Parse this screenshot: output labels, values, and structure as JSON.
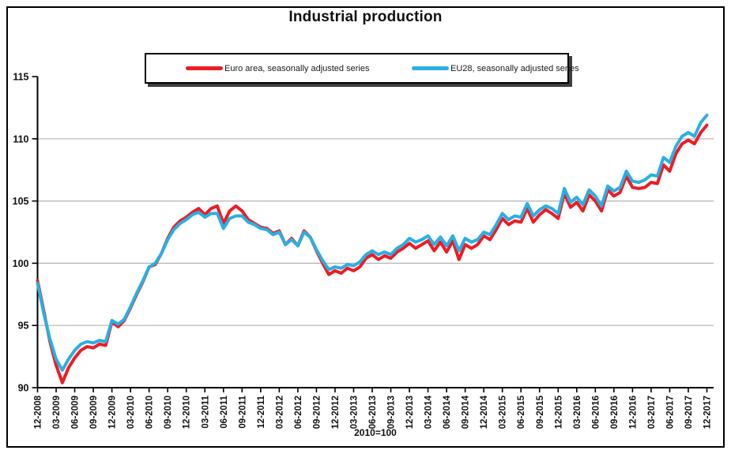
{
  "chart_data": {
    "type": "line",
    "title": "Industrial production",
    "x_note": "2010=100",
    "x_start": "12-2008",
    "x_end": "12-2017",
    "x_frequency": "monthly",
    "x_ticks_every_n_points": 3,
    "x_tick_labels": [
      "12-2008",
      "03-2009",
      "06-2009",
      "09-2009",
      "12-2009",
      "03-2010",
      "06-2010",
      "09-2010",
      "12-2010",
      "03-2011",
      "06-2011",
      "09-2011",
      "12-2011",
      "03-2012",
      "06-2012",
      "09-2012",
      "12-2012",
      "03-2013",
      "06-2013",
      "09-2013",
      "12-2013",
      "03-2014",
      "06-2014",
      "09-2014",
      "12-2014",
      "03-2015",
      "06-2015",
      "09-2015",
      "12-2015",
      "03-2016",
      "06-2016",
      "09-2016",
      "12-2016",
      "03-2017",
      "06-2017",
      "09-2017",
      "12-2017"
    ],
    "y_tick_labels": [
      "90",
      "95",
      "100",
      "105",
      "110",
      "115"
    ],
    "ylim": [
      90,
      115
    ],
    "y_gridlines": [
      95,
      100,
      105,
      110
    ],
    "grid_on": true,
    "legend_position": "top-center",
    "colors": {
      "grid": "#b3b3b3",
      "axis": "#000000"
    },
    "series": [
      {
        "name": "Euro area, seasonally adjusted series",
        "color": "#ed1c24",
        "values": [
          98.6,
          96.2,
          93.7,
          91.8,
          90.4,
          91.6,
          92.4,
          93.0,
          93.3,
          93.2,
          93.5,
          93.4,
          95.3,
          94.9,
          95.4,
          96.4,
          97.5,
          98.5,
          99.7,
          99.9,
          100.8,
          102.0,
          102.9,
          103.4,
          103.7,
          104.1,
          104.4,
          103.9,
          104.4,
          104.6,
          103.2,
          104.2,
          104.6,
          104.2,
          103.5,
          103.2,
          102.9,
          102.8,
          102.4,
          102.6,
          101.5,
          102.0,
          101.4,
          102.6,
          102.1,
          101.0,
          100.0,
          99.1,
          99.4,
          99.2,
          99.6,
          99.4,
          99.7,
          100.4,
          100.7,
          100.3,
          100.6,
          100.4,
          100.9,
          101.2,
          101.6,
          101.2,
          101.5,
          101.8,
          101.0,
          101.7,
          100.9,
          101.8,
          100.3,
          101.5,
          101.2,
          101.5,
          102.2,
          101.9,
          102.7,
          103.6,
          103.1,
          103.4,
          103.3,
          104.4,
          103.3,
          103.9,
          104.3,
          104.0,
          103.6,
          105.6,
          104.5,
          104.9,
          104.2,
          105.5,
          105.0,
          104.2,
          105.9,
          105.4,
          105.7,
          107.0,
          106.1,
          106.0,
          106.1,
          106.5,
          106.4,
          107.9,
          107.4,
          108.8,
          109.6,
          109.9,
          109.6,
          110.5,
          111.1
        ]
      },
      {
        "name": "EU28, seasonally adjusted series",
        "color": "#2aafe3",
        "values": [
          98.4,
          96.0,
          93.9,
          92.3,
          91.4,
          92.3,
          93.0,
          93.5,
          93.7,
          93.6,
          93.8,
          93.7,
          95.4,
          95.1,
          95.5,
          96.5,
          97.6,
          98.6,
          99.7,
          100.0,
          100.8,
          101.9,
          102.7,
          103.2,
          103.5,
          103.9,
          104.1,
          103.7,
          104.0,
          104.0,
          102.8,
          103.6,
          103.8,
          103.8,
          103.3,
          103.1,
          102.8,
          102.7,
          102.3,
          102.5,
          101.5,
          101.9,
          101.4,
          102.5,
          102.1,
          101.1,
          100.2,
          99.5,
          99.7,
          99.6,
          99.9,
          99.8,
          100.1,
          100.7,
          101.0,
          100.7,
          100.9,
          100.7,
          101.2,
          101.5,
          102.0,
          101.7,
          101.9,
          102.2,
          101.5,
          102.1,
          101.4,
          102.2,
          101.0,
          102.0,
          101.7,
          101.9,
          102.5,
          102.3,
          103.1,
          104.0,
          103.5,
          103.8,
          103.7,
          104.8,
          103.8,
          104.3,
          104.6,
          104.4,
          104.0,
          106.0,
          104.9,
          105.3,
          104.7,
          105.9,
          105.4,
          104.6,
          106.2,
          105.8,
          106.1,
          107.4,
          106.6,
          106.5,
          106.7,
          107.1,
          107.0,
          108.5,
          108.1,
          109.4,
          110.2,
          110.5,
          110.2,
          111.3,
          111.9
        ]
      }
    ]
  }
}
